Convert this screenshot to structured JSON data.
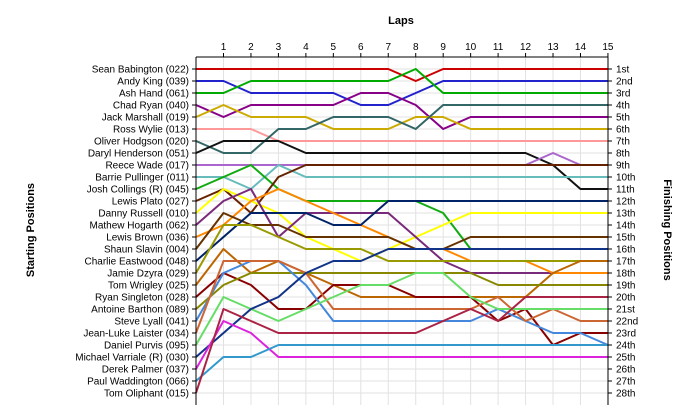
{
  "chart_data": {
    "type": "line",
    "title": "Laps",
    "ylabel_left": "Starting Positions",
    "ylabel_right": "Finishing Positions",
    "x": [
      1,
      2,
      3,
      4,
      5,
      6,
      7,
      8,
      9,
      10,
      11,
      12,
      13,
      14,
      15
    ],
    "xlim": [
      0,
      15
    ],
    "ylim": [
      1,
      28
    ],
    "y_inverted": true,
    "grid": true,
    "starting_labels": [
      "Sean Babington (022)",
      "Andy King (039)",
      "Ash Hand (061)",
      "Chad Ryan (040)",
      "Jack Marshall (019)",
      "Ross Wylie (013)",
      "Oliver Hodgson (020)",
      "Daryl Henderson (051)",
      "Reece Wade (017)",
      "Barrie Pullinger (011)",
      "Josh Collings (R) (045)",
      "Lewis Plato (027)",
      "Danny Russell (010)",
      "Mathew Hogarth (062)",
      "Lewis Brown (036)",
      "Shaun Slavin (004)",
      "Charlie Eastwood (048)",
      "Jamie Dzyra (029)",
      "Tom Wrigley (025)",
      "Ryan Singleton (028)",
      "Antoine Barthon (089)",
      "Steve Lyall (041)",
      "Jean-Luke Laister (034)",
      "Daniel Purvis (095)",
      "Michael Varriale (R) (030)",
      "Derek Palmer (037)",
      "Paul Waddington (066)",
      "Tom Oliphant (015)"
    ],
    "finishing_labels": [
      "1st",
      "2nd",
      "3rd",
      "4th",
      "5th",
      "6th",
      "7th",
      "8th",
      "9th",
      "10th",
      "11th",
      "12th",
      "13th",
      "14th",
      "15th",
      "16th",
      "17th",
      "18th",
      "19th",
      "20th",
      "21st",
      "22nd",
      "23rd",
      "24th",
      "25th",
      "26th",
      "27th",
      "28th"
    ],
    "series": [
      {
        "color": "#cc0000",
        "start": 1,
        "values": [
          1,
          1,
          1,
          1,
          1,
          1,
          1,
          2,
          1,
          1,
          1,
          1,
          1,
          1,
          1
        ]
      },
      {
        "color": "#2222cc",
        "start": 2,
        "values": [
          2,
          3,
          3,
          3,
          3,
          4,
          4,
          3,
          2,
          2,
          2,
          2,
          2,
          2,
          2
        ]
      },
      {
        "color": "#00aa00",
        "start": 3,
        "values": [
          3,
          2,
          2,
          2,
          2,
          2,
          2,
          1,
          3,
          3,
          3,
          3,
          3,
          3,
          3
        ]
      },
      {
        "color": "#880088",
        "start": 4,
        "values": [
          5,
          4,
          4,
          4,
          4,
          3,
          3,
          4,
          6,
          5,
          5,
          5,
          5,
          5,
          5
        ]
      },
      {
        "color": "#ccaa00",
        "start": 5,
        "values": [
          4,
          5,
          5,
          5,
          6,
          6,
          6,
          5,
          5,
          6,
          6,
          6,
          6,
          6,
          6
        ]
      },
      {
        "color": "#ff9999",
        "start": 6,
        "values": [
          6,
          6,
          7,
          7,
          7,
          7,
          7,
          7,
          7,
          7,
          7,
          7,
          7,
          7,
          7
        ]
      },
      {
        "color": "#336666",
        "start": 7,
        "values": [
          8,
          8,
          6,
          6,
          5,
          5,
          5,
          6,
          4,
          4,
          4,
          4,
          4,
          4,
          4
        ]
      },
      {
        "color": "#111111",
        "start": 8,
        "values": [
          7,
          7,
          7,
          8,
          8,
          8,
          8,
          8,
          8,
          8,
          8,
          8,
          9,
          11,
          11
        ]
      },
      {
        "color": "#aa66cc",
        "start": 9,
        "values": [
          9,
          9,
          9,
          9,
          9,
          9,
          9,
          9,
          9,
          9,
          9,
          9,
          8,
          9,
          9
        ]
      },
      {
        "color": "#66bbbb",
        "start": 10,
        "values": [
          10,
          11,
          9,
          10,
          10,
          10,
          10,
          10,
          10,
          10,
          10,
          10,
          10,
          10,
          10
        ]
      },
      {
        "color": "#11aa11",
        "start": 11,
        "values": [
          10,
          9,
          11,
          12,
          12,
          12,
          12,
          12,
          13,
          16,
          16,
          16,
          16,
          16,
          16
        ]
      },
      {
        "color": "#662200",
        "start": 12,
        "values": [
          11,
          13,
          10,
          9,
          9,
          9,
          9,
          9,
          9,
          9,
          9,
          9,
          9,
          9,
          9
        ]
      },
      {
        "color": "#ffff00",
        "start": 13,
        "values": [
          11,
          12,
          13,
          15,
          16,
          17,
          16,
          15,
          14,
          13,
          13,
          13,
          13,
          13,
          13
        ]
      },
      {
        "color": "#7a2a7a",
        "start": 14,
        "values": [
          12,
          11,
          15,
          13,
          13,
          13,
          13,
          15,
          17,
          18,
          18,
          18,
          18,
          18,
          18
        ]
      },
      {
        "color": "#ff8800",
        "start": 15,
        "values": [
          14,
          12,
          11,
          12,
          13,
          14,
          15,
          16,
          16,
          17,
          17,
          17,
          18,
          18,
          18
        ]
      },
      {
        "color": "#663300",
        "start": 16,
        "values": [
          13,
          14,
          14,
          15,
          15,
          15,
          15,
          16,
          16,
          15,
          15,
          15,
          15,
          15,
          15
        ]
      },
      {
        "color": "#002266",
        "start": 17,
        "values": [
          15,
          13,
          13,
          13,
          14,
          14,
          12,
          12,
          12,
          12,
          12,
          12,
          12,
          12,
          12
        ]
      },
      {
        "color": "#999900",
        "start": 18,
        "values": [
          14,
          14,
          15,
          16,
          16,
          16,
          17,
          17,
          17,
          17,
          17,
          17,
          17,
          17,
          17
        ]
      },
      {
        "color": "#bb6600",
        "start": 19,
        "values": [
          16,
          18,
          17,
          18,
          19,
          20,
          20,
          20,
          20,
          20,
          20,
          20,
          18,
          17,
          17
        ]
      },
      {
        "color": "#880000",
        "start": 20,
        "values": [
          18,
          19,
          21,
          21,
          19,
          19,
          19,
          20,
          20,
          20,
          22,
          21,
          24,
          23,
          23
        ]
      },
      {
        "color": "#888800",
        "start": 21,
        "values": [
          19,
          18,
          18,
          18,
          18,
          18,
          18,
          18,
          18,
          18,
          19,
          19,
          19,
          19,
          19
        ]
      },
      {
        "color": "#4488dd",
        "start": 22,
        "values": [
          18,
          17,
          17,
          19,
          22,
          22,
          22,
          22,
          22,
          22,
          21,
          22,
          23,
          23,
          24
        ]
      },
      {
        "color": "#cc6633",
        "start": 23,
        "values": [
          17,
          17,
          17,
          18,
          21,
          21,
          21,
          21,
          21,
          21,
          20,
          22,
          21,
          22,
          22
        ]
      },
      {
        "color": "#66dd66",
        "start": 24,
        "values": [
          20,
          21,
          22,
          21,
          20,
          19,
          19,
          18,
          18,
          20,
          21,
          21,
          21,
          21,
          21
        ]
      },
      {
        "color": "#113388",
        "start": 25,
        "values": [
          23,
          21,
          20,
          18,
          17,
          17,
          16,
          16,
          16,
          16,
          16,
          16,
          16,
          16,
          16
        ]
      },
      {
        "color": "#dd22dd",
        "start": 26,
        "values": [
          22,
          23,
          25,
          25,
          25,
          25,
          25,
          25,
          25,
          25,
          25,
          25,
          25,
          25,
          25
        ]
      },
      {
        "color": "#3399cc",
        "start": 27,
        "values": [
          25,
          25,
          24,
          24,
          24,
          24,
          24,
          24,
          24,
          24,
          24,
          24,
          24,
          24,
          24
        ]
      },
      {
        "color": "#aa2244",
        "start": 28,
        "values": [
          21,
          22,
          23,
          23,
          23,
          23,
          23,
          23,
          22,
          21,
          22,
          20,
          20,
          20,
          20
        ]
      }
    ]
  }
}
